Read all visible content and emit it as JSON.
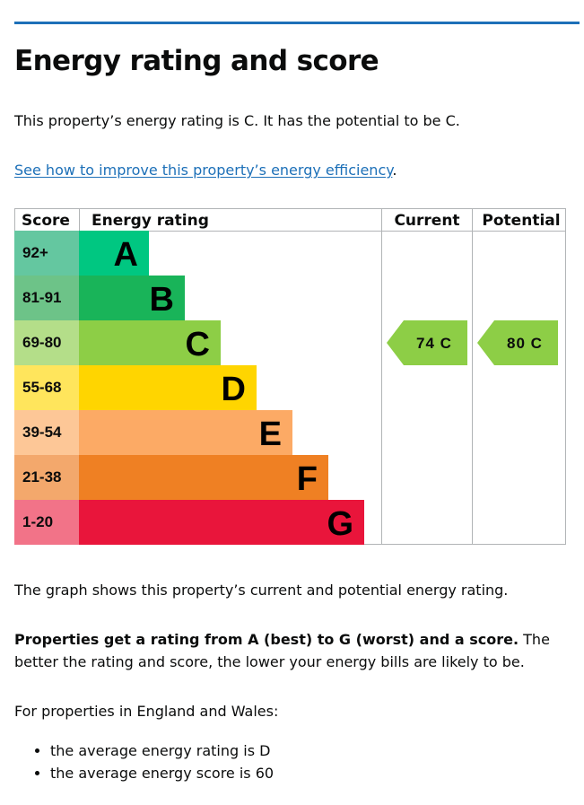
{
  "title": "Energy rating and score",
  "lead": "This property’s energy rating is C. It has the potential to be C.",
  "link": {
    "text": "See how to improve this property’s energy efficiency",
    "suffix": "."
  },
  "chart_data": {
    "type": "table",
    "headers": {
      "score": "Score",
      "rating": "Energy rating",
      "current": "Current",
      "potential": "Potential"
    },
    "bands": [
      {
        "letter": "A",
        "score": "92+",
        "color": "#00c781",
        "score_bg": "#64c7a0"
      },
      {
        "letter": "B",
        "score": "81-91",
        "color": "#19b459",
        "score_bg": "#6dc388"
      },
      {
        "letter": "C",
        "score": "69-80",
        "color": "#8dce46",
        "score_bg": "#b4de89"
      },
      {
        "letter": "D",
        "score": "55-68",
        "color": "#ffd500",
        "score_bg": "#ffe55c"
      },
      {
        "letter": "E",
        "score": "39-54",
        "color": "#fcaa65",
        "score_bg": "#fdc797"
      },
      {
        "letter": "F",
        "score": "21-38",
        "color": "#ef8023",
        "score_bg": "#f3a86c"
      },
      {
        "letter": "G",
        "score": "1-20",
        "color": "#e9153b",
        "score_bg": "#f27388"
      }
    ],
    "current": {
      "score": 74,
      "letter": "C",
      "label": "74 C",
      "band_index": 2,
      "color": "#8dce46"
    },
    "potential": {
      "score": 80,
      "letter": "C",
      "label": "80 C",
      "band_index": 2,
      "color": "#8dce46"
    }
  },
  "graph_note": "The graph shows this property’s current and potential energy rating.",
  "bold_note": {
    "strong": "Properties get a rating from A (best) to G (worst) and a score.",
    "rest": " The better the rating and score, the lower your energy bills are likely to be."
  },
  "england_wales": "For properties in England and Wales:",
  "bullets": [
    "the average energy rating is D",
    "the average energy score is 60"
  ]
}
